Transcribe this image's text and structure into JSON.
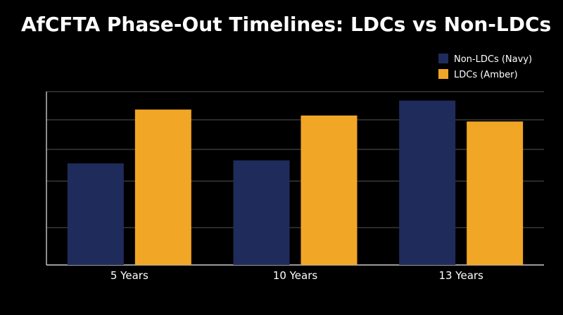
{
  "chart_data": {
    "type": "bar",
    "title": "AfCFTA Phase-Out Timelines: LDCs vs Non-LDCs",
    "categories": [
      "5 Years",
      "10 Years",
      "13 Years"
    ],
    "series": [
      {
        "name": "Non-LDCs (Navy)",
        "color": "#1f2b5b",
        "values": [
          3.4,
          3.5,
          5.5
        ]
      },
      {
        "name": "LDCs (Amber)",
        "color": "#f2a626",
        "values": [
          5.2,
          5.0,
          4.8
        ]
      }
    ],
    "ylim": [
      0,
      5.8
    ],
    "grid": true,
    "legend_position": "top-right",
    "xlabel": "",
    "ylabel": ""
  }
}
